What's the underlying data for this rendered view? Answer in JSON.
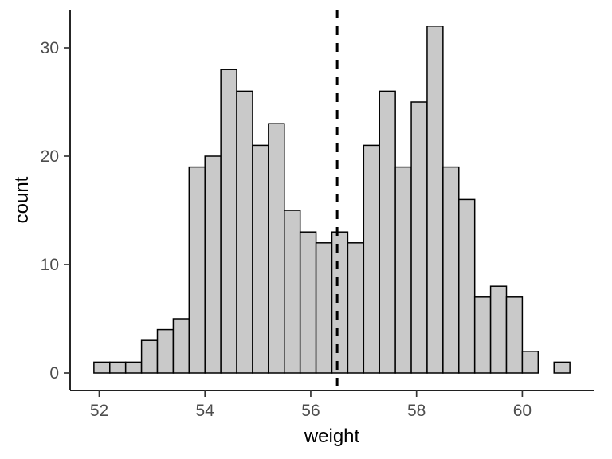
{
  "figure": {
    "background": "#ffffff"
  },
  "chart_data": {
    "type": "bar",
    "subtype": "histogram",
    "title": "",
    "xlabel": "weight",
    "ylabel": "count",
    "bar_fill": "#c9c9c9",
    "bar_stroke": "#000000",
    "bin_start": 51.9,
    "bin_width": 0.3,
    "counts": [
      1,
      1,
      1,
      3,
      4,
      5,
      19,
      20,
      28,
      26,
      21,
      23,
      15,
      13,
      12,
      13,
      12,
      21,
      26,
      19,
      25,
      32,
      19,
      16,
      7,
      8,
      7,
      2,
      0,
      1
    ],
    "x_ticks": [
      52,
      54,
      56,
      58,
      60
    ],
    "y_ticks": [
      0,
      10,
      20,
      30
    ],
    "x_domain": [
      51.45,
      61.35
    ],
    "y_max": 32,
    "grid": "off",
    "legend": "none",
    "annotations": [
      {
        "kind": "vline",
        "x": 56.5,
        "style": "dashed",
        "color": "#000000"
      }
    ],
    "axis_color": "#000000",
    "tick_label_color": "#4d4d4d"
  }
}
